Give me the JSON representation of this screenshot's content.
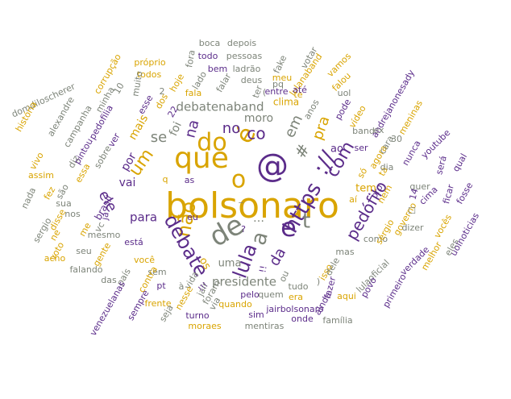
{
  "palette": {
    "gold": "#d9a400",
    "purple": "#5b2c8a",
    "gray": "#7d8479",
    "lightgold": "#e2a640"
  },
  "words": [
    {
      "text": "bolsonaro",
      "color": "gold",
      "rank": 1
    },
    {
      "text": "que",
      "color": "gold",
      "rank": 2
    },
    {
      "text": "de",
      "color": "gray",
      "rank": 2
    },
    {
      "text": "@",
      "color": "purple",
      "rank": 2
    },
    {
      "text": "o",
      "color": "gold",
      "rank": 2
    },
    {
      "text": "e",
      "color": "purple",
      "rank": 3
    },
    {
      "text": "é",
      "color": "gold",
      "rank": 3
    },
    {
      "text": "a",
      "color": "gray",
      "rank": 3
    },
    {
      "text": "do",
      "color": "gold",
      "rank": 3
    },
    {
      "text": "co",
      "color": "purple",
      "rank": 3
    },
    {
      "text": "https",
      "color": "purple",
      "rank": 3
    },
    {
      "text": "://",
      "color": "purple",
      "rank": 3
    },
    {
      "text": "não",
      "color": "gold",
      "rank": 3
    },
    {
      "text": "lula",
      "color": "purple",
      "rank": 3
    },
    {
      "text": "debate",
      "color": "purple",
      "rank": 3
    },
    {
      "text": "com",
      "color": "purple",
      "rank": 3
    },
    {
      "text": "t",
      "color": "gray",
      "rank": 3
    },
    {
      "text": "#",
      "color": "gray",
      "rank": 3
    },
    {
      "text": "um",
      "color": "gold",
      "rank": 4
    },
    {
      "text": "se",
      "color": "gray",
      "rank": 4
    },
    {
      "text": "no",
      "color": "purple",
      "rank": 4
    },
    {
      "text": "na",
      "color": "purple",
      "rank": 4
    },
    {
      "text": "ele",
      "color": "purple",
      "rank": 4
    },
    {
      "text": "em",
      "color": "gray",
      "rank": 4
    },
    {
      "text": "pra",
      "color": "gold",
      "rank": 4
    },
    {
      "text": "pedófilo",
      "color": "purple",
      "rank": 4
    },
    {
      "text": "da",
      "color": "purple",
      "rank": 4
    },
    {
      "text": "presidente",
      "color": "gray",
      "rank": 5
    },
    {
      "text": "para",
      "color": "purple",
      "rank": 5
    },
    {
      "text": "debatenaband",
      "color": "gray",
      "rank": 5
    },
    {
      "text": "moro",
      "color": "gray",
      "rank": 5
    },
    {
      "text": "vai",
      "color": "purple",
      "rank": 5
    },
    {
      "text": "por",
      "color": "purple",
      "rank": 5
    },
    {
      "text": "foi",
      "color": "gray",
      "rank": 5
    },
    {
      "text": "mais",
      "color": "gold",
      "rank": 5
    },
    {
      "text": "uma",
      "color": "gray",
      "rank": 5
    },
    {
      "text": "os",
      "color": "gold",
      "rank": 5
    },
    {
      "text": "tem",
      "color": "gold",
      "rank": 5
    },
    {
      "text": "ao",
      "color": "purple",
      "rank": 5
    },
    {
      "text": "clima",
      "color": "gold",
      "rank": 5
    },
    {
      "text": "as",
      "color": "purple",
      "rank": 6
    },
    {
      "text": "eu",
      "color": "purple",
      "rank": 6
    },
    {
      "text": "sobre",
      "color": "gray",
      "rank": 6
    },
    {
      "text": "pintou",
      "color": "purple",
      "rank": 6
    },
    {
      "text": "brasil",
      "color": "purple",
      "rank": 6
    },
    {
      "text": "mesmo",
      "color": "gray",
      "rank": 6
    },
    {
      "text": "está",
      "color": "purple",
      "rank": 6
    },
    {
      "text": "você",
      "color": "gold",
      "rank": 6
    },
    {
      "text": "quando",
      "color": "gold",
      "rank": 6
    },
    {
      "text": "tudo",
      "color": "gray",
      "rank": 6
    },
    {
      "text": "mas",
      "color": "gray",
      "rank": 6
    },
    {
      "text": "como",
      "color": "gray",
      "rank": 6
    },
    {
      "text": "isso",
      "color": "gold",
      "rank": 6
    },
    {
      "text": "fazer",
      "color": "purple",
      "rank": 6
    },
    {
      "text": "dele",
      "color": "gray",
      "rank": 6
    },
    {
      "text": "só",
      "color": "gold",
      "rank": 6
    },
    {
      "text": "vídeo",
      "color": "gold",
      "rank": 6
    },
    {
      "text": "pode",
      "color": "purple",
      "rank": 6
    },
    {
      "text": "anos",
      "color": "gray",
      "rank": 6
    },
    {
      "text": "agora",
      "color": "gold",
      "rank": 6
    },
    {
      "text": "tá",
      "color": "gold",
      "rank": 6
    },
    {
      "text": "ser",
      "color": "purple",
      "rank": 6
    },
    {
      "text": "band",
      "color": "gray",
      "rank": 6
    },
    {
      "text": "hoje",
      "color": "gold",
      "rank": 6
    },
    {
      "text": "fala",
      "color": "gold",
      "rank": 6
    },
    {
      "text": "dos",
      "color": "gold",
      "rank": 6
    },
    {
      "text": "esse",
      "color": "purple",
      "rank": 6
    },
    {
      "text": "sérgio",
      "color": "gold",
      "rank": 6
    },
    {
      "text": "governo",
      "color": "gold",
      "rank": 6
    },
    {
      "text": "boca",
      "color": "gray",
      "rank": 7
    },
    {
      "text": "depois",
      "color": "gray",
      "rank": 7
    },
    {
      "text": "próprio",
      "color": "gold",
      "rank": 7
    },
    {
      "text": "todo",
      "color": "purple",
      "rank": 7
    },
    {
      "text": "pessoas",
      "color": "gray",
      "rank": 7
    },
    {
      "text": "fake",
      "color": "gray",
      "rank": 7
    },
    {
      "text": "votar",
      "color": "gray",
      "rank": 7
    },
    {
      "text": "todos",
      "color": "gold",
      "rank": 7
    },
    {
      "text": "fora",
      "color": "gray",
      "rank": 7
    },
    {
      "text": "bem",
      "color": "purple",
      "rank": 7
    },
    {
      "text": "ladrão",
      "color": "gray",
      "rank": 7
    },
    {
      "text": "lulanaband",
      "color": "gold",
      "rank": 7
    },
    {
      "text": "vamos",
      "color": "gold",
      "rank": 7
    },
    {
      "text": "corrupção",
      "color": "gold",
      "rank": 7
    },
    {
      "text": "lado",
      "color": "gray",
      "rank": 7
    },
    {
      "text": "falar",
      "color": "gray",
      "rank": 7
    },
    {
      "text": "deus",
      "color": "gray",
      "rank": 7
    },
    {
      "text": "meu",
      "color": "gold",
      "rank": 7
    },
    {
      "text": "falou",
      "color": "gold",
      "rank": 7
    },
    {
      "text": "domdiloscherer",
      "color": "gray",
      "rank": 7
    },
    {
      "text": "minha",
      "color": "gray",
      "rank": 7
    },
    {
      "text": "muito",
      "color": "gray",
      "rank": 7
    },
    {
      "text": "ter",
      "color": "gray",
      "rank": 7
    },
    {
      "text": "entre",
      "color": "purple",
      "rank": 7
    },
    {
      "text": "pq",
      "color": "gray",
      "rank": 7
    },
    {
      "text": "até",
      "color": "purple",
      "rank": 7
    },
    {
      "text": "te",
      "color": "gold",
      "rank": 7
    },
    {
      "text": "uol",
      "color": "gray",
      "rank": 7
    },
    {
      "text": "andrejanonesady",
      "color": "purple",
      "rank": 7
    },
    {
      "text": "história",
      "color": "gold",
      "rank": 7
    },
    {
      "text": "alexandre",
      "color": "gray",
      "rank": 7
    },
    {
      "text": "campanha",
      "color": "gray",
      "rank": 7
    },
    {
      "text": "pedofilia",
      "color": "purple",
      "rank": 7
    },
    {
      "text": "meninas",
      "color": "gold",
      "rank": 7
    },
    {
      "text": "ex",
      "color": "gray",
      "rank": 7
    },
    {
      "text": "cara",
      "color": "gray",
      "rank": 7
    },
    {
      "text": "nunca",
      "color": "purple",
      "rank": 7
    },
    {
      "text": "youtube",
      "color": "purple",
      "rank": 7
    },
    {
      "text": "dia",
      "color": "gray",
      "rank": 7
    },
    {
      "text": "será",
      "color": "purple",
      "rank": 7
    },
    {
      "text": "qual",
      "color": "purple",
      "rank": 7
    },
    {
      "text": "diz",
      "color": "gray",
      "rank": 7
    },
    {
      "text": "essa",
      "color": "gold",
      "rank": 7
    },
    {
      "text": "ver",
      "color": "purple",
      "rank": 7
    },
    {
      "text": "vivo",
      "color": "gold",
      "rank": 7
    },
    {
      "text": "assim",
      "color": "gold",
      "rank": 7
    },
    {
      "text": "já",
      "color": "purple",
      "rank": 7
    },
    {
      "text": "são",
      "color": "gray",
      "rank": 7
    },
    {
      "text": "sua",
      "color": "gray",
      "rank": 7
    },
    {
      "text": "nada",
      "color": "gray",
      "rank": 7
    },
    {
      "text": "fez",
      "color": "gold",
      "rank": 7
    },
    {
      "text": "pro",
      "color": "purple",
      "rank": 7
    },
    {
      "text": "quer",
      "color": "gray",
      "rank": 7
    },
    {
      "text": "fosse",
      "color": "purple",
      "rank": 7
    },
    {
      "text": "cima",
      "color": "purple",
      "rank": 7
    },
    {
      "text": "14",
      "color": "purple",
      "rank": 7
    },
    {
      "text": "ficar",
      "color": "purple",
      "rank": 7
    },
    {
      "text": "aí",
      "color": "gold",
      "rank": 7
    },
    {
      "text": "nem",
      "color": "gold",
      "rank": 7
    },
    {
      "text": "dizer",
      "color": "gray",
      "rank": 7
    },
    {
      "text": "vocês",
      "color": "gold",
      "rank": 7
    },
    {
      "text": "uolnoticias",
      "color": "purple",
      "rank": 7
    },
    {
      "text": "disse",
      "color": "gold",
      "rank": 7
    },
    {
      "text": "nos",
      "color": "gray",
      "rank": 7
    },
    {
      "text": "me",
      "color": "gold",
      "rank": 7
    },
    {
      "text": "vc",
      "color": "gray",
      "rank": 7
    },
    {
      "text": "sergio",
      "color": "gray",
      "rank": 7
    },
    {
      "text": "ne",
      "color": "gold",
      "rank": 7
    },
    {
      "text": "voto",
      "color": "gold",
      "rank": 7
    },
    {
      "text": "acho",
      "color": "gold",
      "rank": 7
    },
    {
      "text": "seu",
      "color": "gray",
      "rank": 7
    },
    {
      "text": "gente",
      "color": "gold",
      "rank": 7
    },
    {
      "text": "falando",
      "color": "gray",
      "rank": 7
    },
    {
      "text": "sem",
      "color": "gray",
      "rank": 7
    },
    {
      "text": "contra",
      "color": "gold",
      "rank": 7
    },
    {
      "text": "país",
      "color": "gray",
      "rank": 7
    },
    {
      "text": "das",
      "color": "gray",
      "rank": 7
    },
    {
      "text": "vida",
      "color": "gray",
      "rank": 7
    },
    {
      "text": "foram",
      "color": "gray",
      "rank": 7
    },
    {
      "text": "pelo",
      "color": "purple",
      "rank": 7
    },
    {
      "text": "quem",
      "color": "gray",
      "rank": 7
    },
    {
      "text": "ou",
      "color": "gray",
      "rank": 7
    },
    {
      "text": "ainda",
      "color": "purple",
      "rank": 7
    },
    {
      "text": "aqui",
      "color": "gold",
      "rank": 7
    },
    {
      "text": "lulaoficial",
      "color": "gray",
      "rank": 7
    },
    {
      "text": "povo",
      "color": "purple",
      "rank": 7
    },
    {
      "text": "verdade",
      "color": "purple",
      "rank": 7
    },
    {
      "text": "eles",
      "color": "gray",
      "rank": 7
    },
    {
      "text": "melhor",
      "color": "gold",
      "rank": 7
    },
    {
      "text": "primeiro",
      "color": "purple",
      "rank": 7
    },
    {
      "text": "venezuelanas",
      "color": "purple",
      "rank": 7
    },
    {
      "text": "frente",
      "color": "gold",
      "rank": 7
    },
    {
      "text": "sempre",
      "color": "purple",
      "rank": 7
    },
    {
      "text": "seja",
      "color": "gray",
      "rank": 7
    },
    {
      "text": "moraes",
      "color": "gold",
      "rank": 7
    },
    {
      "text": "turno",
      "color": "purple",
      "rank": 7
    },
    {
      "text": "via",
      "color": "gray",
      "rank": 7
    },
    {
      "text": "sim",
      "color": "purple",
      "rank": 7
    },
    {
      "text": "mentiras",
      "color": "gray",
      "rank": 7
    },
    {
      "text": "onde",
      "color": "purple",
      "rank": 7
    },
    {
      "text": "família",
      "color": "gray",
      "rank": 7
    },
    {
      "text": "jairbolsonaro",
      "color": "purple",
      "rank": 7
    },
    {
      "text": "era",
      "color": "gold",
      "rank": 7
    },
    {
      "text": "jair",
      "color": "gray",
      "rank": 7
    },
    {
      "text": "nesse",
      "color": "gold",
      "rank": 7
    },
    {
      "text": "pt",
      "color": "purple",
      "rank": 7
    },
    {
      "text": "à",
      "color": "gray",
      "rank": 7
    },
    {
      "text": "10",
      "color": "gray",
      "rank": 7
    },
    {
      "text": "2",
      "color": "gray",
      "rank": 7
    },
    {
      "text": "22",
      "color": "purple",
      "rank": 7
    },
    {
      "text": "30",
      "color": "gray",
      "rank": 7
    },
    {
      "text": "q",
      "color": "gold",
      "rank": 7
    },
    {
      "text": "☐",
      "color": "gray",
      "rank": 7
    },
    {
      "text": "(",
      "color": "gray",
      "rank": 7
    },
    {
      "text": ")",
      "color": "gray",
      "rank": 7
    },
    {
      "text": "…",
      "color": "gray",
      "rank": 7
    },
    {
      "text": "!!!",
      "color": "purple",
      "rank": 7
    },
    {
      "text": "!!",
      "color": "purple",
      "rank": 7
    },
    {
      "text": "?",
      "color": "purple",
      "rank": 7
    },
    {
      "text": "_",
      "color": "gray",
      "rank": 7
    }
  ]
}
